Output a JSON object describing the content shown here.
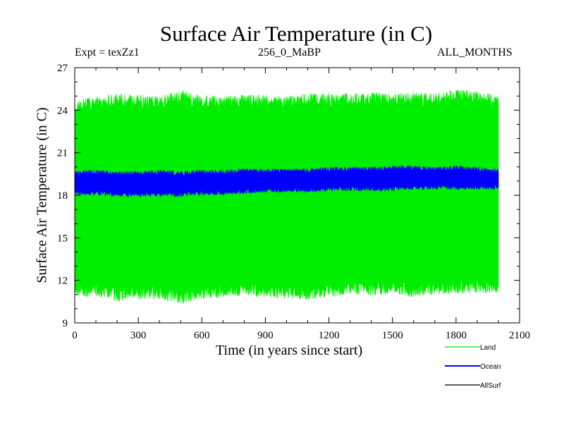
{
  "chart_data": {
    "type": "area",
    "title": "Surface Air Temperature (in C)",
    "subtitle_left": "Expt = texZz1",
    "subtitle_center": "256_0_MaBP",
    "subtitle_right": "ALL_MONTHS",
    "xlabel": "Time (in years since start)",
    "ylabel": "Surface Air Temperature (in C)",
    "xlim": [
      0,
      2100
    ],
    "ylim": [
      9,
      27
    ],
    "xticks": [
      "0",
      "300",
      "600",
      "900",
      "1200",
      "1500",
      "1800",
      "2100"
    ],
    "yticks": [
      "9",
      "12",
      "15",
      "18",
      "21",
      "24",
      "27"
    ],
    "x": [
      0,
      100,
      200,
      300,
      400,
      500,
      600,
      700,
      800,
      900,
      1000,
      1100,
      1200,
      1300,
      1400,
      1500,
      1600,
      1700,
      1800,
      1900,
      2000
    ],
    "series": [
      {
        "name": "Land",
        "color": "#00ee00",
        "min": [
          10.8,
          10.9,
          10.5,
          10.6,
          10.7,
          10.3,
          10.7,
          10.8,
          10.9,
          10.8,
          10.7,
          10.6,
          10.8,
          11.0,
          10.9,
          11.0,
          10.8,
          11.0,
          11.0,
          11.1,
          11.1
        ],
        "max": [
          24.8,
          25.0,
          25.2,
          25.1,
          25.0,
          25.4,
          25.1,
          25.0,
          25.2,
          25.1,
          25.0,
          25.2,
          25.2,
          25.2,
          25.3,
          25.2,
          25.3,
          25.2,
          25.5,
          25.4,
          25.0
        ]
      },
      {
        "name": "Ocean",
        "color": "#0000ff",
        "min": [
          18.0,
          18.0,
          17.9,
          17.9,
          17.9,
          17.9,
          18.0,
          18.0,
          18.1,
          18.2,
          18.2,
          18.2,
          18.3,
          18.3,
          18.3,
          18.3,
          18.4,
          18.4,
          18.4,
          18.4,
          18.4
        ],
        "max": [
          19.7,
          19.8,
          19.7,
          19.7,
          19.8,
          19.7,
          19.8,
          19.8,
          19.9,
          19.9,
          19.9,
          19.9,
          20.0,
          20.0,
          20.0,
          20.1,
          20.1,
          20.0,
          20.1,
          20.0,
          19.9
        ]
      },
      {
        "name": "AllSurf",
        "color": "#000000"
      }
    ],
    "legend_position": "bottom-right"
  }
}
